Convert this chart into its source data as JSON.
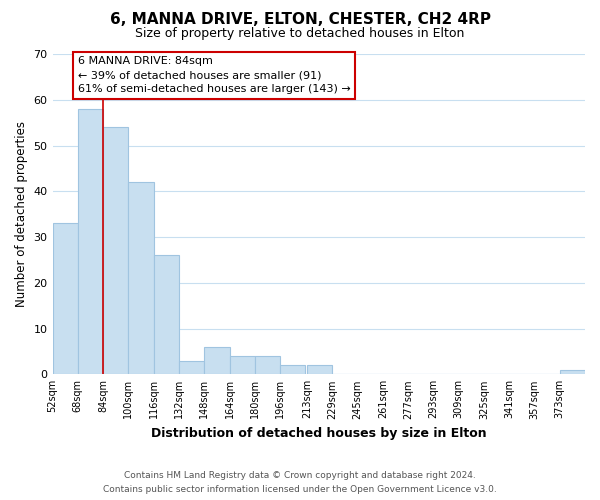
{
  "title": "6, MANNA DRIVE, ELTON, CHESTER, CH2 4RP",
  "subtitle": "Size of property relative to detached houses in Elton",
  "xlabel": "Distribution of detached houses by size in Elton",
  "ylabel": "Number of detached properties",
  "bar_edges": [
    52,
    68,
    84,
    100,
    116,
    132,
    148,
    164,
    180,
    196,
    213,
    229,
    245,
    261,
    277,
    293,
    309,
    325,
    341,
    357,
    373
  ],
  "bar_heights": [
    33,
    58,
    54,
    42,
    26,
    3,
    6,
    4,
    4,
    2,
    2,
    0,
    0,
    0,
    0,
    0,
    0,
    0,
    0,
    0,
    1
  ],
  "bar_color": "#c8dff0",
  "bar_edge_color": "#a0c4e0",
  "reference_line_x": 84,
  "reference_line_color": "#cc0000",
  "ylim": [
    0,
    70
  ],
  "yticks": [
    0,
    10,
    20,
    30,
    40,
    50,
    60,
    70
  ],
  "xtick_labels": [
    "52sqm",
    "68sqm",
    "84sqm",
    "100sqm",
    "116sqm",
    "132sqm",
    "148sqm",
    "164sqm",
    "180sqm",
    "196sqm",
    "213sqm",
    "229sqm",
    "245sqm",
    "261sqm",
    "277sqm",
    "293sqm",
    "309sqm",
    "325sqm",
    "341sqm",
    "357sqm",
    "373sqm"
  ],
  "annotation_title": "6 MANNA DRIVE: 84sqm",
  "annotation_line1": "← 39% of detached houses are smaller (91)",
  "annotation_line2": "61% of semi-detached houses are larger (143) →",
  "annotation_box_color": "#ffffff",
  "annotation_box_edge_color": "#cc0000",
  "footer_line1": "Contains HM Land Registry data © Crown copyright and database right 2024.",
  "footer_line2": "Contains public sector information licensed under the Open Government Licence v3.0.",
  "background_color": "#ffffff",
  "grid_color": "#c8dff0",
  "title_fontsize": 11,
  "subtitle_fontsize": 9
}
